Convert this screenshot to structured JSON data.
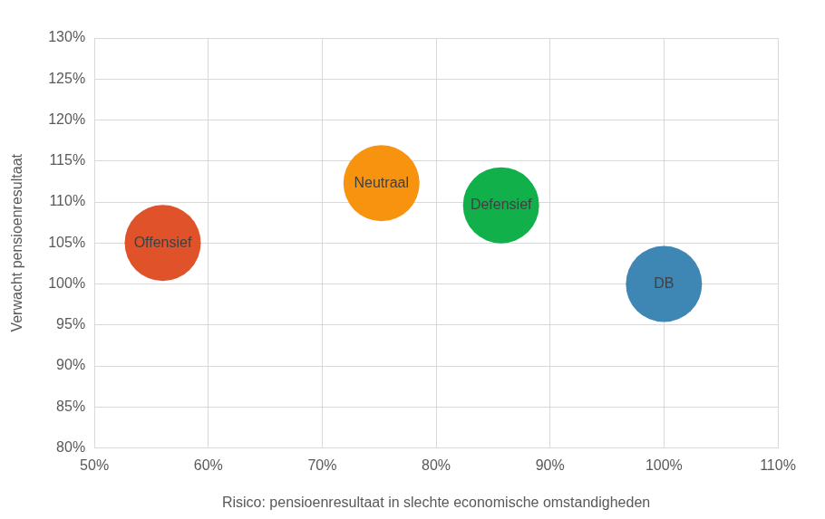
{
  "chart_data": {
    "type": "scatter",
    "x_label": "Risico: pensioenresultaat in slechte economische omstandigheden",
    "y_label": "Verwacht pensioenresultaat",
    "marker": "circle",
    "grid": true,
    "series": [
      {
        "name": "Offensief",
        "color": "#E0522A",
        "x": [
          56
        ],
        "values": [
          105
        ]
      },
      {
        "name": "Neutraal",
        "color": "#F7930E",
        "x": [
          75.2
        ],
        "values": [
          112.3
        ]
      },
      {
        "name": "Defensief",
        "color": "#12B04B",
        "x": [
          85.7
        ],
        "values": [
          109.6
        ]
      },
      {
        "name": "DB",
        "color": "#3E87B5",
        "x": [
          100
        ],
        "values": [
          100
        ]
      }
    ],
    "xlim": [
      50,
      110
    ],
    "xticks": [
      {
        "value": 50,
        "label": "50%"
      },
      {
        "value": 60,
        "label": "60%"
      },
      {
        "value": 70,
        "label": "70%"
      },
      {
        "value": 80,
        "label": "80%"
      },
      {
        "value": 90,
        "label": "90%"
      },
      {
        "value": 100,
        "label": "100%"
      },
      {
        "value": 110,
        "label": "110%"
      }
    ],
    "ylim": [
      80,
      130
    ],
    "yticks": [
      {
        "value": 80,
        "label": "80%"
      },
      {
        "value": 85,
        "label": "85%"
      },
      {
        "value": 90,
        "label": "90%"
      },
      {
        "value": 95,
        "label": "95%"
      },
      {
        "value": 100,
        "label": "100%"
      },
      {
        "value": 105,
        "label": "105%"
      },
      {
        "value": 110,
        "label": "110%"
      },
      {
        "value": 115,
        "label": "115%"
      },
      {
        "value": 120,
        "label": "120%"
      },
      {
        "value": 125,
        "label": "125%"
      },
      {
        "value": 130,
        "label": "130%"
      }
    ]
  }
}
